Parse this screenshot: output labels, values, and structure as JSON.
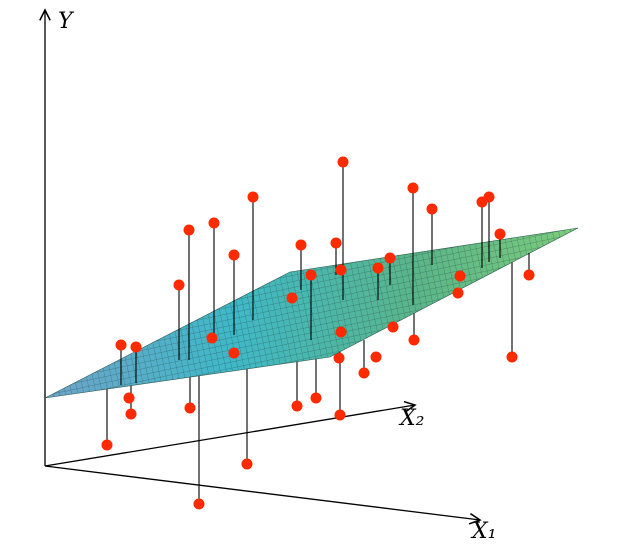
{
  "axes": {
    "y_label": "Y",
    "x2_label": "X₂",
    "x1_label": "X₁"
  }
}
